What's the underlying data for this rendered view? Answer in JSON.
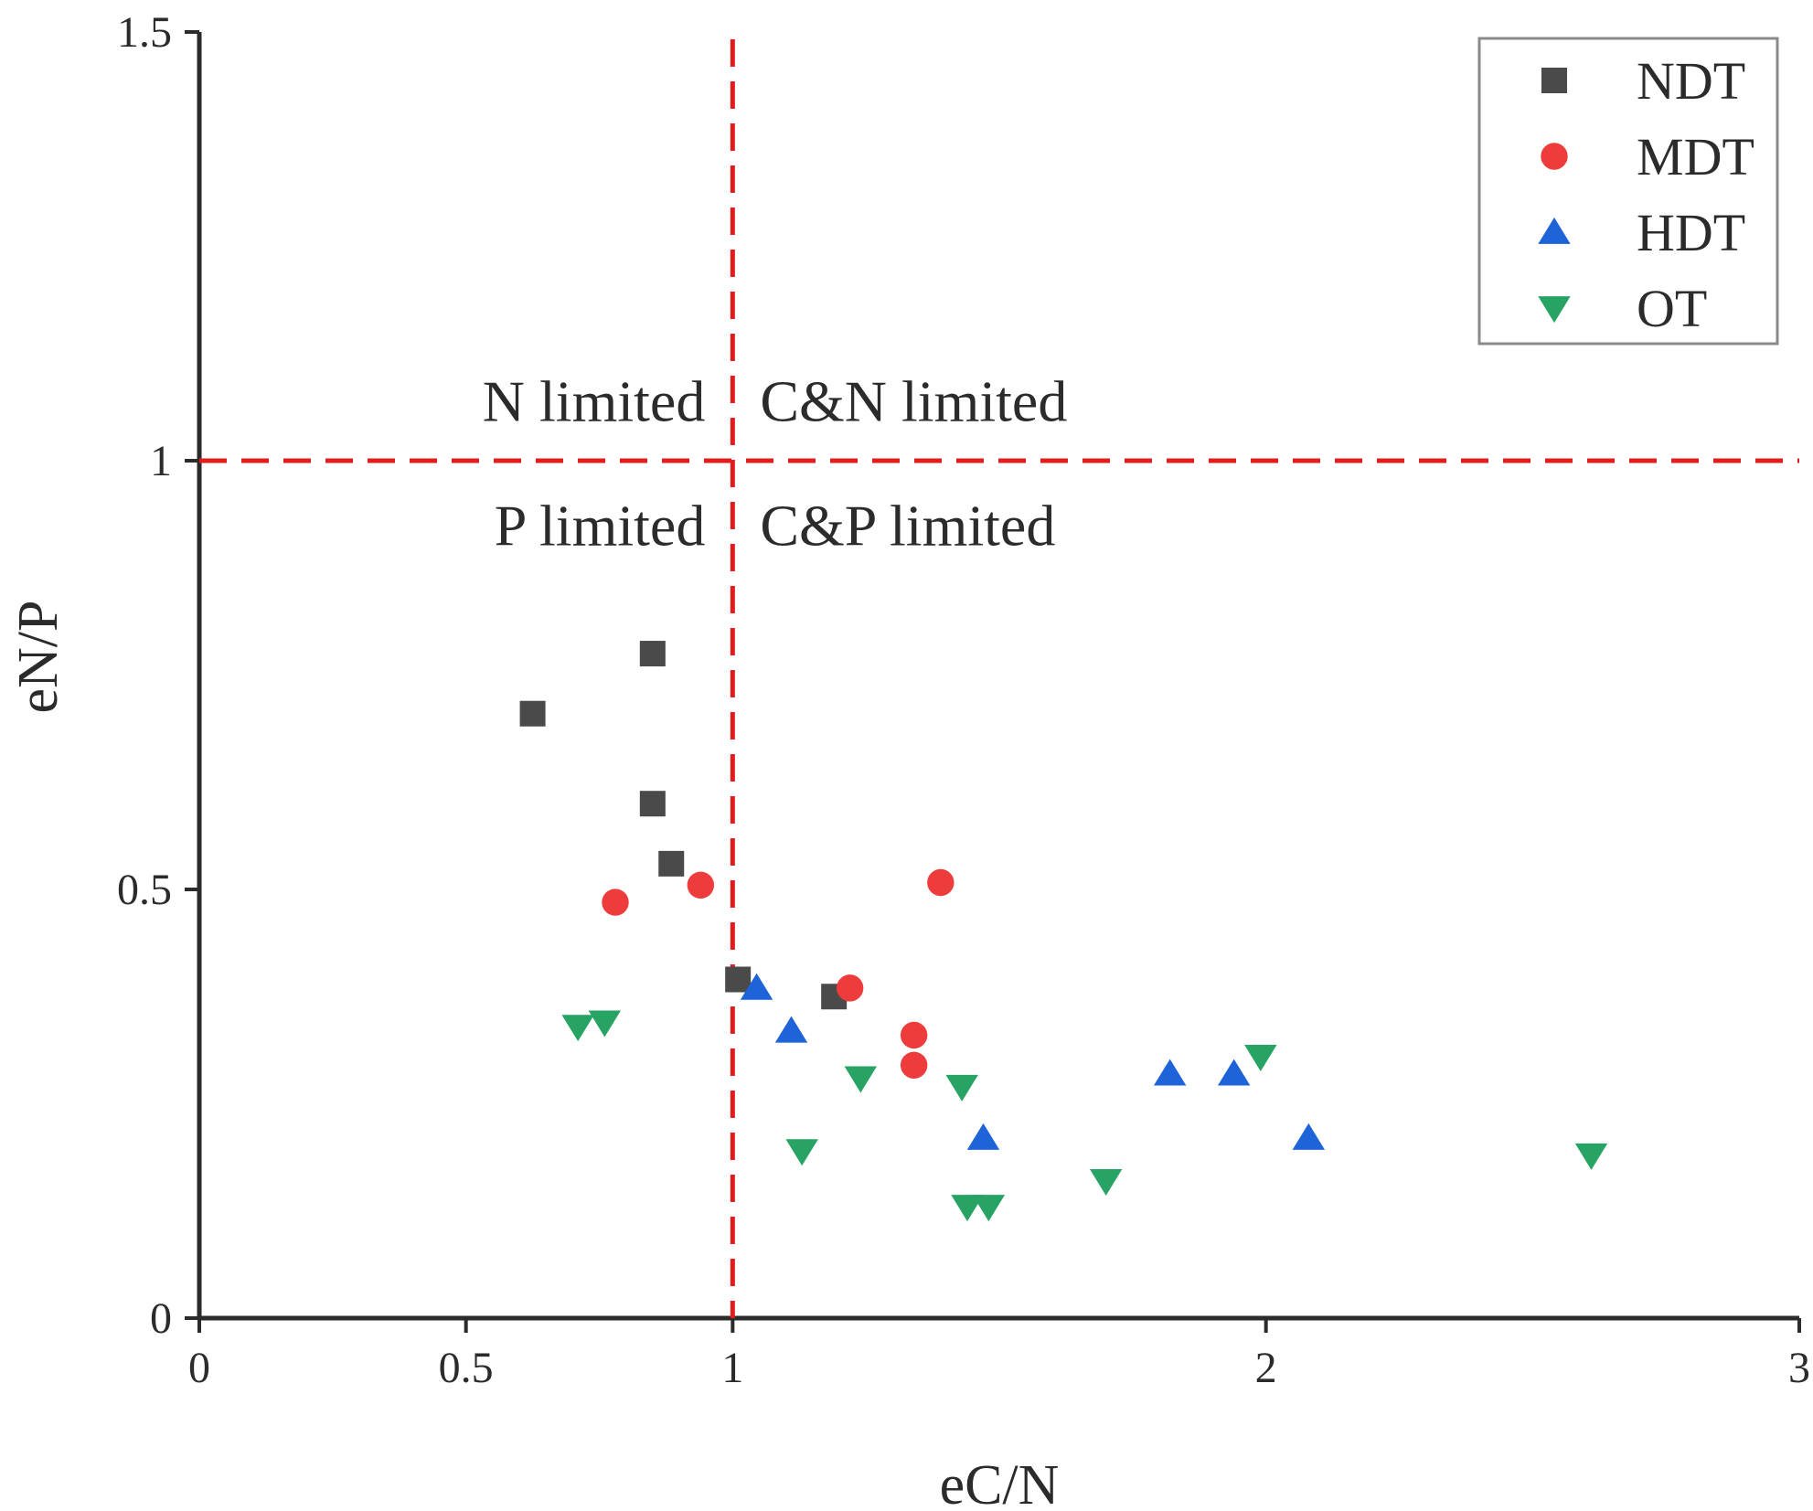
{
  "chart_data": {
    "type": "scatter",
    "title": "",
    "xlabel": "eC/N",
    "ylabel": "eN/P",
    "xlim": [
      0,
      3
    ],
    "ylim": [
      0,
      1.5
    ],
    "grid": false,
    "legend_position": "top-right",
    "x_ticks": [
      {
        "value": 0,
        "label": "0"
      },
      {
        "value": 0.5,
        "label": "0.5"
      },
      {
        "value": 1,
        "label": "1"
      },
      {
        "value": 2,
        "label": "2"
      },
      {
        "value": 3,
        "label": "3"
      }
    ],
    "y_ticks": [
      {
        "value": 0,
        "label": "0"
      },
      {
        "value": 0.5,
        "label": "0.5"
      },
      {
        "value": 1,
        "label": "1"
      },
      {
        "value": 1.5,
        "label": "1.5"
      }
    ],
    "thresholds": {
      "x": 1,
      "y": 1
    },
    "region_labels": [
      {
        "text": "N limited",
        "x": 0.47,
        "y": 1.07
      },
      {
        "text": "C&N limited",
        "x": 1.05,
        "y": 1.07
      },
      {
        "text": "P limited",
        "x": 0.47,
        "y": 0.925
      },
      {
        "text": "C&P limited",
        "x": 1.05,
        "y": 0.925
      }
    ],
    "series": [
      {
        "name": "NDT",
        "marker": "square",
        "color": "#4a4a4a",
        "points": [
          [
            0.85,
            0.775
          ],
          [
            0.625,
            0.705
          ],
          [
            0.85,
            0.6
          ],
          [
            0.885,
            0.53
          ],
          [
            1.01,
            0.395
          ],
          [
            1.19,
            0.375
          ]
        ]
      },
      {
        "name": "MDT",
        "marker": "circle",
        "color": "#ee3c3c",
        "points": [
          [
            0.78,
            0.485
          ],
          [
            0.94,
            0.505
          ],
          [
            1.39,
            0.508
          ],
          [
            1.22,
            0.385
          ],
          [
            1.34,
            0.33
          ],
          [
            1.34,
            0.295
          ]
        ]
      },
      {
        "name": "HDT",
        "marker": "triangle-up",
        "color": "#1e63d8",
        "points": [
          [
            1.045,
            0.385
          ],
          [
            1.11,
            0.335
          ],
          [
            1.47,
            0.21
          ],
          [
            1.82,
            0.285
          ],
          [
            1.94,
            0.285
          ],
          [
            2.08,
            0.21
          ]
        ]
      },
      {
        "name": "OT",
        "marker": "triangle-down",
        "color": "#27a463",
        "points": [
          [
            0.71,
            0.34
          ],
          [
            0.76,
            0.345
          ],
          [
            1.13,
            0.195
          ],
          [
            1.24,
            0.28
          ],
          [
            1.43,
            0.27
          ],
          [
            1.44,
            0.13
          ],
          [
            1.48,
            0.13
          ],
          [
            1.7,
            0.16
          ],
          [
            1.99,
            0.305
          ],
          [
            2.61,
            0.19
          ]
        ]
      }
    ]
  }
}
